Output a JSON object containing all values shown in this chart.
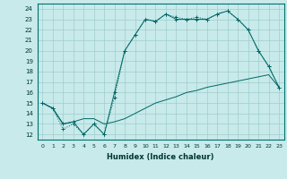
{
  "xlabel": "Humidex (Indice chaleur)",
  "bg_color": "#c8eaea",
  "grid_color": "#a0cccc",
  "line_color": "#006666",
  "xlim": [
    -0.5,
    23.5
  ],
  "ylim": [
    11.5,
    24.5
  ],
  "xticks": [
    0,
    1,
    2,
    3,
    4,
    5,
    6,
    7,
    8,
    9,
    10,
    11,
    12,
    13,
    14,
    15,
    16,
    17,
    18,
    19,
    20,
    21,
    22,
    23
  ],
  "yticks": [
    12,
    13,
    14,
    15,
    16,
    17,
    18,
    19,
    20,
    21,
    22,
    23,
    24
  ],
  "s0": [
    15,
    14.5,
    12.5,
    13,
    12,
    13,
    12,
    15.5,
    20,
    21.5,
    23,
    22.8,
    23.5,
    23.2,
    23,
    23.2,
    23,
    23.5,
    23.8,
    23,
    22,
    20,
    18.5,
    16.5
  ],
  "s1": [
    15,
    14.5,
    13,
    13.2,
    13.5,
    13.5,
    13,
    13.2,
    13.5,
    14,
    14.5,
    15,
    15.3,
    15.6,
    16,
    16.2,
    16.5,
    16.7,
    16.9,
    17.1,
    17.3,
    17.5,
    17.7,
    16.5
  ],
  "s2": [
    15,
    14.5,
    13,
    13.2,
    12,
    13,
    12,
    16,
    20,
    21.5,
    23,
    22.8,
    23.5,
    23,
    23,
    23,
    23,
    23.5,
    23.8,
    23,
    22,
    20,
    18.5,
    16.5
  ]
}
